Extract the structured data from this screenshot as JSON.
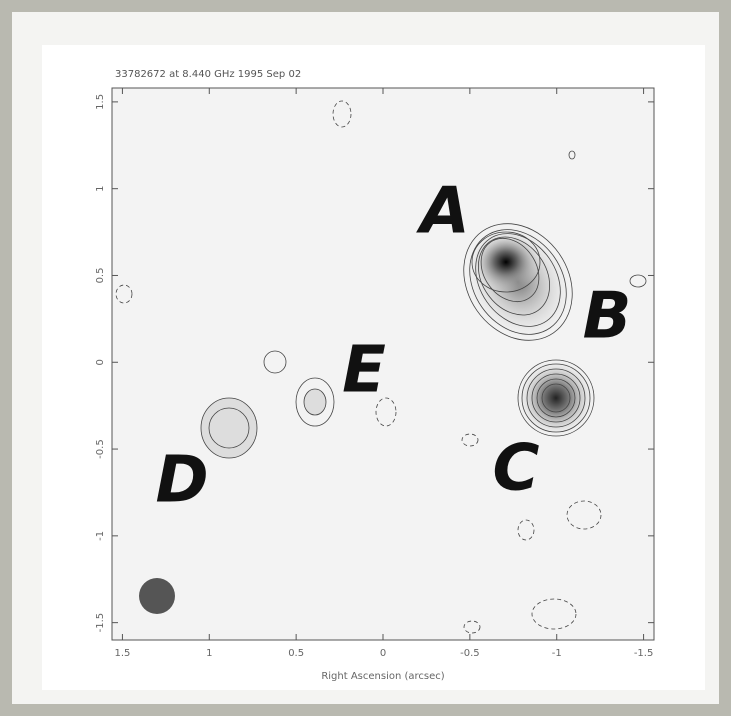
{
  "chart_data": {
    "type": "contour",
    "title": "33782672 at 8.440 GHz 1995 Sep 02",
    "xlabel": "Right Ascension  (arcsec)",
    "xlim": [
      1.56,
      -1.56
    ],
    "ylim": [
      -1.6,
      1.58
    ],
    "xticks": [
      1.5,
      1,
      0.5,
      0,
      -0.5,
      -1,
      -1.5
    ],
    "yticks": [
      1.5,
      1,
      0.5,
      0,
      -0.5,
      -1,
      -1.5
    ],
    "annotations": [
      "A",
      "B",
      "C",
      "D",
      "E"
    ]
  }
}
